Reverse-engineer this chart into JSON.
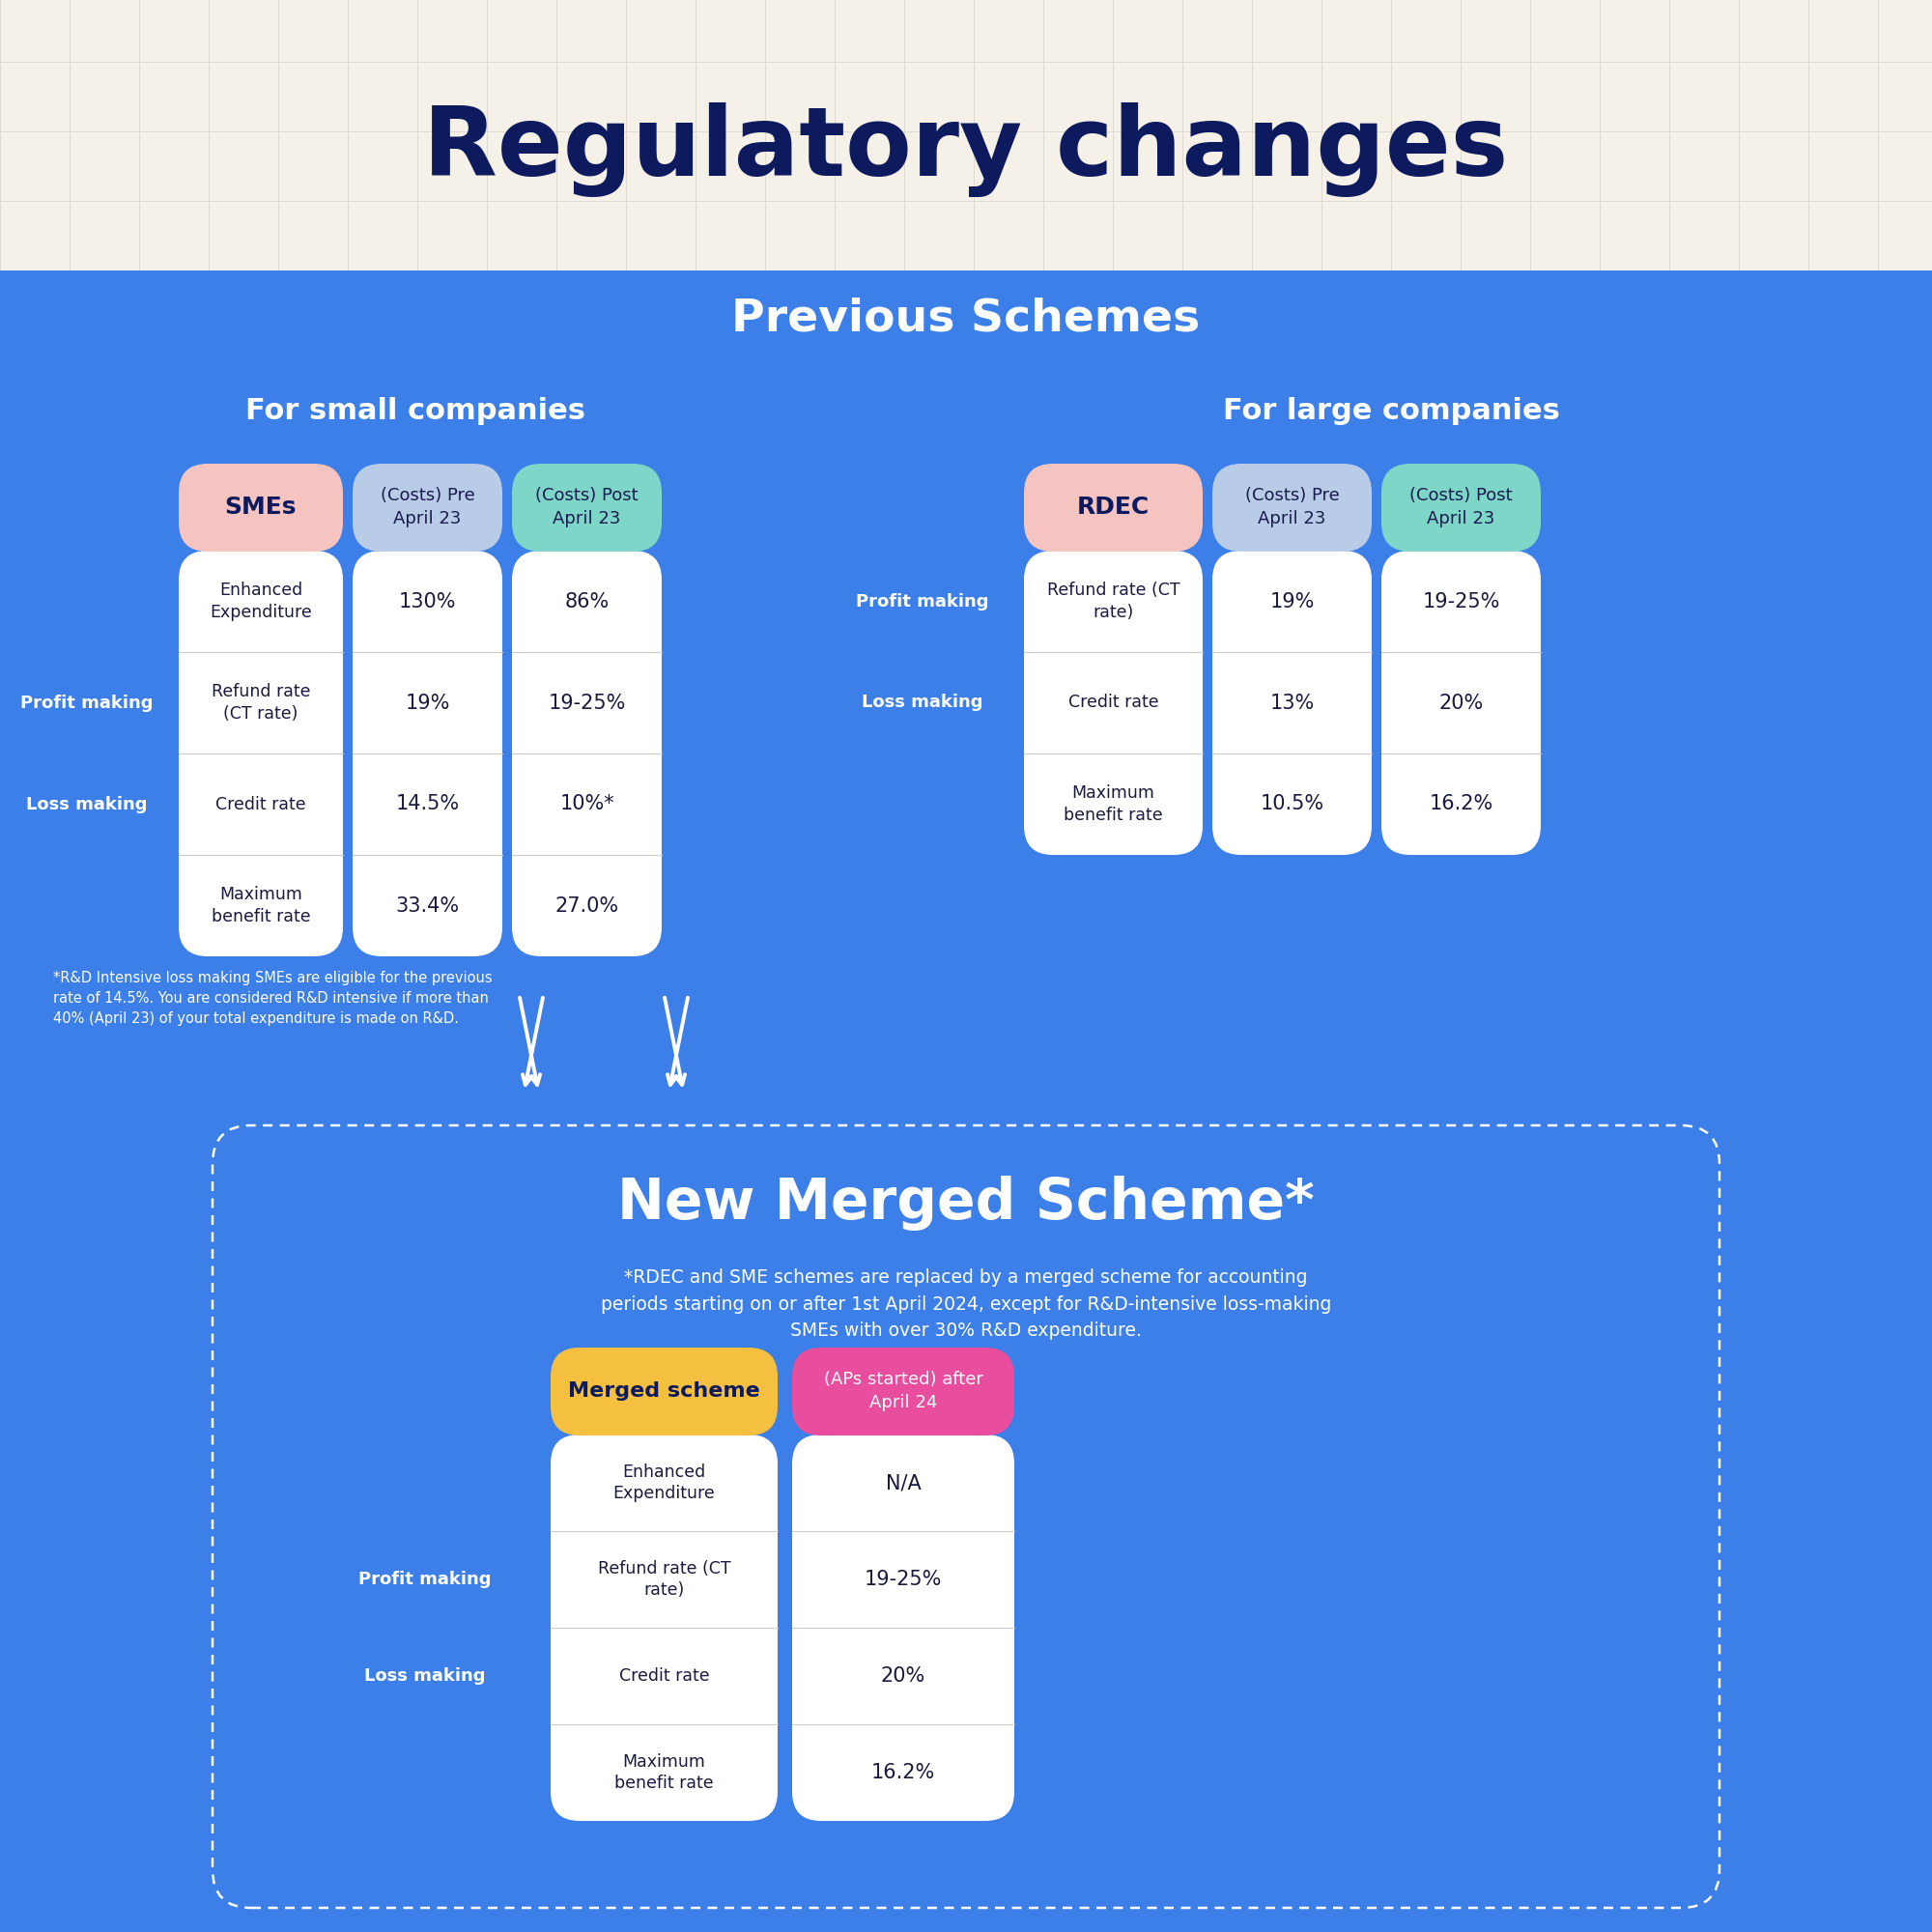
{
  "title": "Regulatory changes",
  "title_color": "#0d1b5e",
  "title_bg": "#f5f0e8",
  "main_bg": "#3d7fe8",
  "grid_color": "#ddd8cc",
  "prev_schemes_title": "Previous Schemes",
  "small_companies_title": "For small companies",
  "large_companies_title": "For large companies",
  "sme_header": "SMEs",
  "sme_header_color": "#0d1b5e",
  "sme_header_bg": "#f5c4c0",
  "rdec_header": "RDEC",
  "rdec_header_color": "#0d1b5e",
  "rdec_header_bg": "#f5c4c0",
  "col2_pre_header": "(Costs) Pre\nApril 23",
  "col3_post_header": "(Costs) Post\nApril 23",
  "col2_pre_bg": "#b8cce8",
  "col3_post_bg": "#7dd6c8",
  "white": "#ffffff",
  "sme_rows": [
    {
      "label": "Enhanced\nExpenditure",
      "pre": "130%",
      "post": "86%",
      "profit": false,
      "loss": false
    },
    {
      "label": "Refund rate\n(CT rate)",
      "pre": "19%",
      "post": "19-25%",
      "profit": true,
      "loss": false
    },
    {
      "label": "Credit rate",
      "pre": "14.5%",
      "post": "10%*",
      "profit": false,
      "loss": true
    },
    {
      "label": "Maximum\nbenefit rate",
      "pre": "33.4%",
      "post": "27.0%",
      "profit": false,
      "loss": false
    }
  ],
  "rdec_rows": [
    {
      "label": "Refund rate (CT\nrate)",
      "pre": "19%",
      "post": "19-25%",
      "profit": true,
      "loss": false
    },
    {
      "label": "Credit rate",
      "pre": "13%",
      "post": "20%",
      "profit": false,
      "loss": true
    },
    {
      "label": "Maximum\nbenefit rate",
      "pre": "10.5%",
      "post": "16.2%",
      "profit": false,
      "loss": false
    }
  ],
  "footnote": "*R&D Intensive loss making SMEs are eligible for the previous\nrate of 14.5%. You are considered R&D intensive if more than\n40% (April 23) of your total expenditure is made on R&D.",
  "merged_title": "New Merged Scheme*",
  "merged_subtitle": "*RDEC and SME schemes are replaced by a merged scheme for accounting\nperiods starting on or after 1st April 2024, except for R&D-intensive loss-making\nSMEs with over 30% R&D expenditure.",
  "merged_scheme_header": "Merged scheme",
  "merged_scheme_header_bg": "#f5c040",
  "merged_scheme_header_color": "#0d1b5e",
  "merged_col2_header": "(APs started) after\nApril 24",
  "merged_col2_bg": "#e84d9e",
  "merged_rows": [
    {
      "label": "Enhanced\nExpenditure",
      "val": "N/A",
      "profit": false,
      "loss": false
    },
    {
      "label": "Refund rate (CT\nrate)",
      "val": "19-25%",
      "profit": true,
      "loss": false
    },
    {
      "label": "Credit rate",
      "val": "20%",
      "profit": false,
      "loss": true
    },
    {
      "label": "Maximum\nbenefit rate",
      "val": "16.2%",
      "profit": false,
      "loss": false
    }
  ],
  "profit_making_label": "Profit making",
  "loss_making_label": "Loss making",
  "row_sep_color": "#cccccc",
  "row_text_color": "#1a1a3e"
}
